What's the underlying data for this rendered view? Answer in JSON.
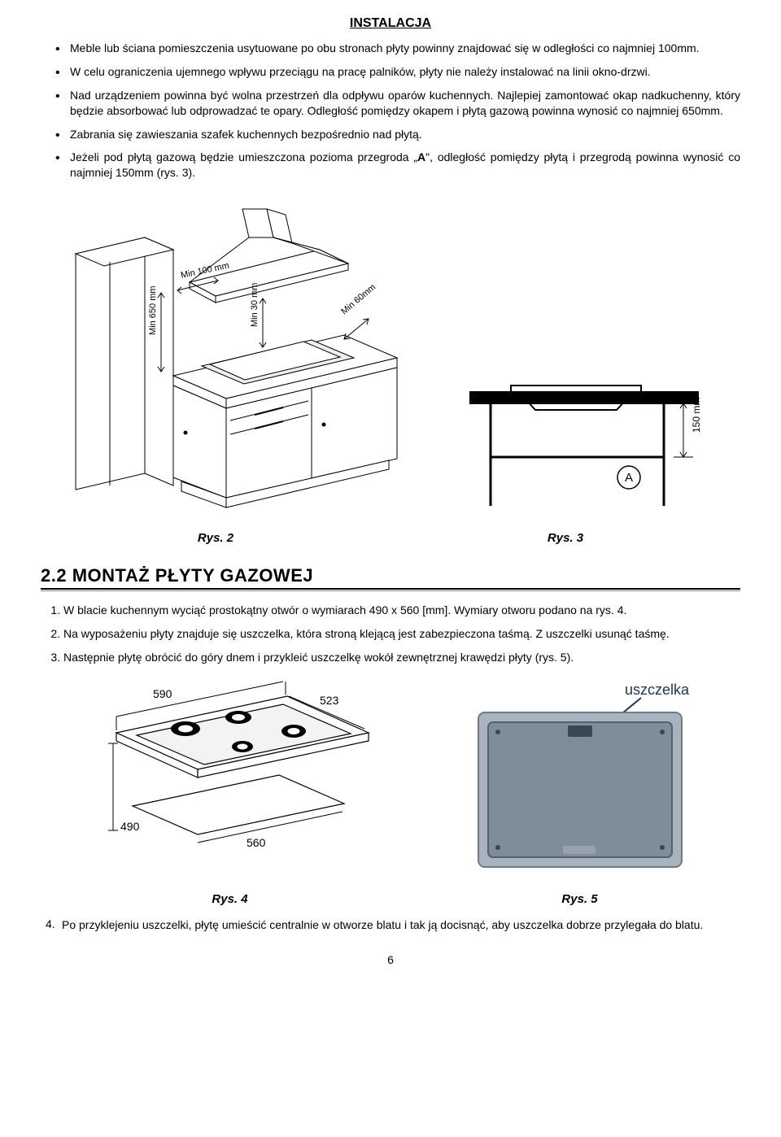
{
  "doc_title": "INSTALACJA",
  "bullets": [
    "Meble lub ściana pomieszczenia usytuowane po obu stronach płyty powinny znajdować się w odległości co najmniej 100mm.",
    "W celu ograniczenia ujemnego wpływu przeciągu na pracę palników, płyty nie należy instalować na linii okno-drzwi.",
    "Nad urządzeniem powinna być wolna przestrzeń dla odpływu oparów kuchennych. Najlepiej zamontować okap nadkuchenny, który będzie absorbować lub odprowadzać te opary. Odległość pomiędzy okapem i płytą gazową powinna wynosić co najmniej 650mm.",
    "Zabrania się zawieszania szafek kuchennych bezpośrednio nad płytą.",
    "Jeżeli pod płytą gazową będzie umieszczona pozioma przegroda „__A__\", odległość pomiędzy płytą i przegrodą powinna wynosić co najmniej 150mm (rys. 3)."
  ],
  "fig2": {
    "caption": "Rys. 2",
    "labels": {
      "min650": "Min 650 mm",
      "min100": "Min 100 mm",
      "min30": "Min 30 mm",
      "min60": "Min 60mm"
    },
    "colors": {
      "stroke": "#000",
      "fill": "#fff"
    }
  },
  "fig3": {
    "caption": "Rys. 3",
    "labels": {
      "A": "A",
      "h": "150 mm"
    },
    "colors": {
      "stroke": "#000"
    }
  },
  "section_2_2": "2.2 MONTAŻ PŁYTY GAZOWEJ",
  "numbered": [
    "W blacie kuchennym wyciąć prostokątny otwór o wymiarach 490 x 560 [mm]. Wymiary otworu podano na rys. 4.",
    "Na wyposażeniu płyty znajduje się uszczelka, która stroną klejącą jest zabezpieczona taśmą. Z uszczelki usunąć taśmę.",
    "Następnie płytę obrócić do góry dnem i przykleić uszczelkę wokół zewnętrznej krawędzi płyty (rys. 5)."
  ],
  "fig4": {
    "caption": "Rys. 4",
    "dims": {
      "w_top": "590",
      "w_inner": "523",
      "h_front": "490",
      "d_bottom": "560"
    },
    "burner_color": "#000",
    "stroke": "#000"
  },
  "fig5": {
    "caption": "Rys. 5",
    "label": "uszczelka",
    "colors": {
      "plate": "#7d8e9a",
      "frame": "#a9b3bd",
      "arrow": "#1a3470",
      "text": "#1a3470"
    }
  },
  "last_para": "Po przyklejeniu uszczelki, płytę umieścić centralnie w otworze blatu i tak ją docisnąć, aby uszczelka dobrze przylegała do blatu.",
  "last_num": "4.",
  "page_number": "6"
}
